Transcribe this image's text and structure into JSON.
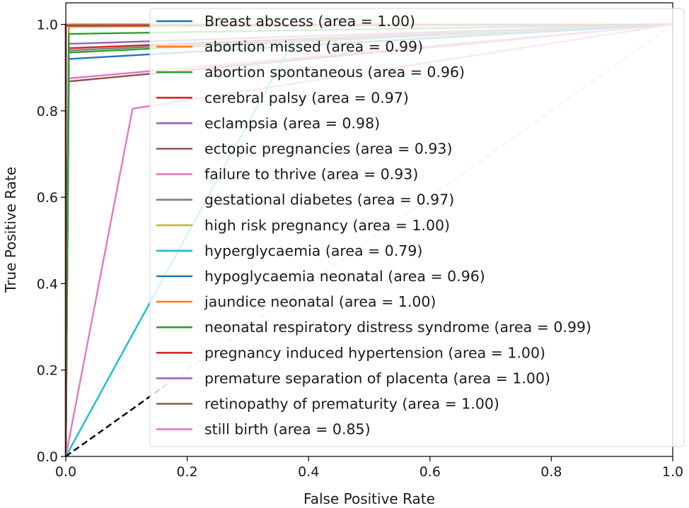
{
  "chart_data": {
    "type": "line",
    "title": "",
    "xlabel": "False Positive Rate",
    "ylabel": "True Positive Rate",
    "xlim": [
      0.0,
      1.0
    ],
    "ylim": [
      0.0,
      1.05
    ],
    "xticks": [
      0.0,
      0.2,
      0.4,
      0.6,
      0.8,
      1.0
    ],
    "yticks": [
      0.0,
      0.2,
      0.4,
      0.6,
      0.8,
      1.0
    ],
    "xtick_labels": [
      "0.0",
      "0.2",
      "0.4",
      "0.6",
      "0.8",
      "1.0"
    ],
    "ytick_labels": [
      "0.0",
      "0.2",
      "0.4",
      "0.6",
      "0.8",
      "1.0"
    ],
    "grid": false,
    "legend_position": "top-right",
    "series": [
      {
        "name": "Breast abscess",
        "label": "Breast abscess (area = 1.00)",
        "color": "#1f77b4",
        "dash": "solid",
        "x": [
          0,
          0.0,
          1
        ],
        "y": [
          0,
          1.0,
          1
        ]
      },
      {
        "name": "abortion missed",
        "label": "abortion missed (area = 0.99)",
        "color": "#ff7f0e",
        "dash": "solid",
        "x": [
          0,
          0.005,
          1
        ],
        "y": [
          0,
          0.995,
          1
        ]
      },
      {
        "name": "abortion spontaneous",
        "label": "abortion spontaneous (area = 0.96)",
        "color": "#2ca02c",
        "dash": "solid",
        "x": [
          0,
          0.005,
          1
        ],
        "y": [
          0,
          0.935,
          1
        ]
      },
      {
        "name": "cerebral palsy",
        "label": "cerebral palsy (area = 0.97)",
        "color": "#d62728",
        "dash": "solid",
        "x": [
          0,
          0.005,
          1
        ],
        "y": [
          0,
          0.945,
          1
        ]
      },
      {
        "name": "eclampsia",
        "label": "eclampsia (area = 0.98)",
        "color": "#9467bd",
        "dash": "solid",
        "x": [
          0,
          0.005,
          1
        ],
        "y": [
          0,
          0.955,
          1
        ]
      },
      {
        "name": "ectopic pregnancies",
        "label": "ectopic pregnancies (area = 0.93)",
        "color": "#8c564b",
        "dash": "solid",
        "x": [
          0,
          0.005,
          1
        ],
        "y": [
          0,
          0.868,
          1
        ]
      },
      {
        "name": "failure to thrive",
        "label": "failure to thrive (area = 0.93)",
        "color": "#e377c2",
        "dash": "solid",
        "x": [
          0,
          0.005,
          1
        ],
        "y": [
          0,
          0.875,
          1
        ]
      },
      {
        "name": "gestational diabetes",
        "label": "gestational diabetes (area = 0.97)",
        "color": "#7f7f7f",
        "dash": "solid",
        "x": [
          0,
          0.005,
          1
        ],
        "y": [
          0,
          0.94,
          1
        ]
      },
      {
        "name": "high risk pregnancy",
        "label": "high risk pregnancy (area = 1.00)",
        "color": "#bcbd22",
        "dash": "solid",
        "x": [
          0,
          0.0,
          1
        ],
        "y": [
          0,
          1.0,
          1
        ]
      },
      {
        "name": "hyperglycaemia",
        "label": "hyperglycaemia (area = 0.79)",
        "color": "#17becf",
        "dash": "solid",
        "x": [
          0,
          0.37,
          1
        ],
        "y": [
          0,
          0.95,
          1
        ]
      },
      {
        "name": "hypoglycaemia neonatal",
        "label": "hypoglycaemia neonatal (area = 0.96)",
        "color": "#1f77b4",
        "dash": "solid",
        "x": [
          0,
          0.005,
          1
        ],
        "y": [
          0,
          0.92,
          1
        ]
      },
      {
        "name": "jaundice neonatal",
        "label": "jaundice neonatal (area = 1.00)",
        "color": "#ff7f0e",
        "dash": "solid",
        "x": [
          0,
          0.0,
          1
        ],
        "y": [
          0,
          1.0,
          1
        ]
      },
      {
        "name": "neonatal respiratory distress syndrome",
        "label": "neonatal respiratory distress syndrome (area = 0.99)",
        "color": "#2ca02c",
        "dash": "solid",
        "x": [
          0,
          0.005,
          1
        ],
        "y": [
          0,
          0.978,
          1
        ]
      },
      {
        "name": "pregnancy induced hypertension",
        "label": "pregnancy induced hypertension (area = 1.00)",
        "color": "#d62728",
        "dash": "solid",
        "x": [
          0,
          0.0,
          1
        ],
        "y": [
          0,
          0.998,
          1
        ]
      },
      {
        "name": "premature separation of placenta",
        "label": "premature separation of placenta (area = 1.00)",
        "color": "#9467bd",
        "dash": "solid",
        "x": [
          0,
          0.0,
          1
        ],
        "y": [
          0,
          0.998,
          1
        ]
      },
      {
        "name": "retinopathy of prematurity",
        "label": "retinopathy of prematurity (area = 1.00)",
        "color": "#8c564b",
        "dash": "solid",
        "x": [
          0,
          0.0,
          1
        ],
        "y": [
          0,
          0.997,
          1
        ]
      },
      {
        "name": "still birth",
        "label": "still birth (area = 0.85)",
        "color": "#e377c2",
        "dash": "solid",
        "x": [
          0,
          0.11,
          1
        ],
        "y": [
          0,
          0.805,
          1
        ]
      }
    ],
    "reference_line": {
      "name": "chance",
      "x": [
        0,
        1
      ],
      "y": [
        0,
        1
      ],
      "color_low": "#000000",
      "color_high": "#c8c8c8",
      "dash": "dashed"
    }
  }
}
